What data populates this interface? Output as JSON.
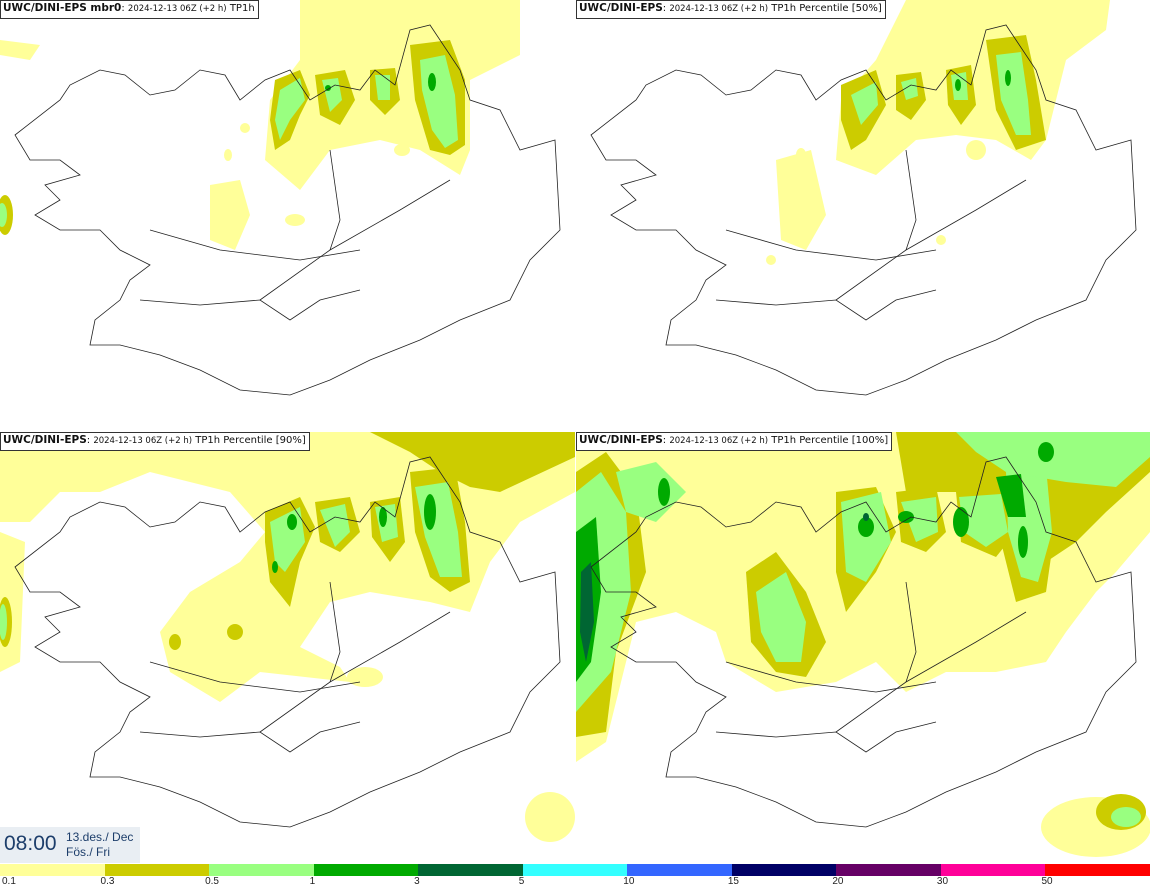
{
  "panels": [
    {
      "model": "UWC/DINI-EPS mbr0",
      "date": "2024-12-13 06Z (+2 h)",
      "field": "TP1h"
    },
    {
      "model": "UWC/DINI-EPS",
      "date": "2024-12-13 06Z (+2 h)",
      "field": "TP1h Percentile [50%]"
    },
    {
      "model": "UWC/DINI-EPS",
      "date": "2024-12-13 06Z (+2 h)",
      "field": "TP1h Percentile [90%]"
    },
    {
      "model": "UWC/DINI-EPS",
      "date": "2024-12-13 06Z (+2 h)",
      "field": "TP1h Percentile [100%]"
    }
  ],
  "valid_time": {
    "clock": "08:00",
    "date_line": "13.des./ Dec",
    "day_line": "Fös./ Fri"
  },
  "legend": {
    "labels": [
      "0.1",
      "0.3",
      "0.5",
      "1",
      "3",
      "5",
      "10",
      "15",
      "20",
      "30",
      "50"
    ],
    "colors": [
      "#ffff99",
      "#cccc00",
      "#99ff80",
      "#00aa00",
      "#006633",
      "#33ffff",
      "#3366ff",
      "#000066",
      "#660066",
      "#ff0099",
      "#ff0000"
    ]
  }
}
